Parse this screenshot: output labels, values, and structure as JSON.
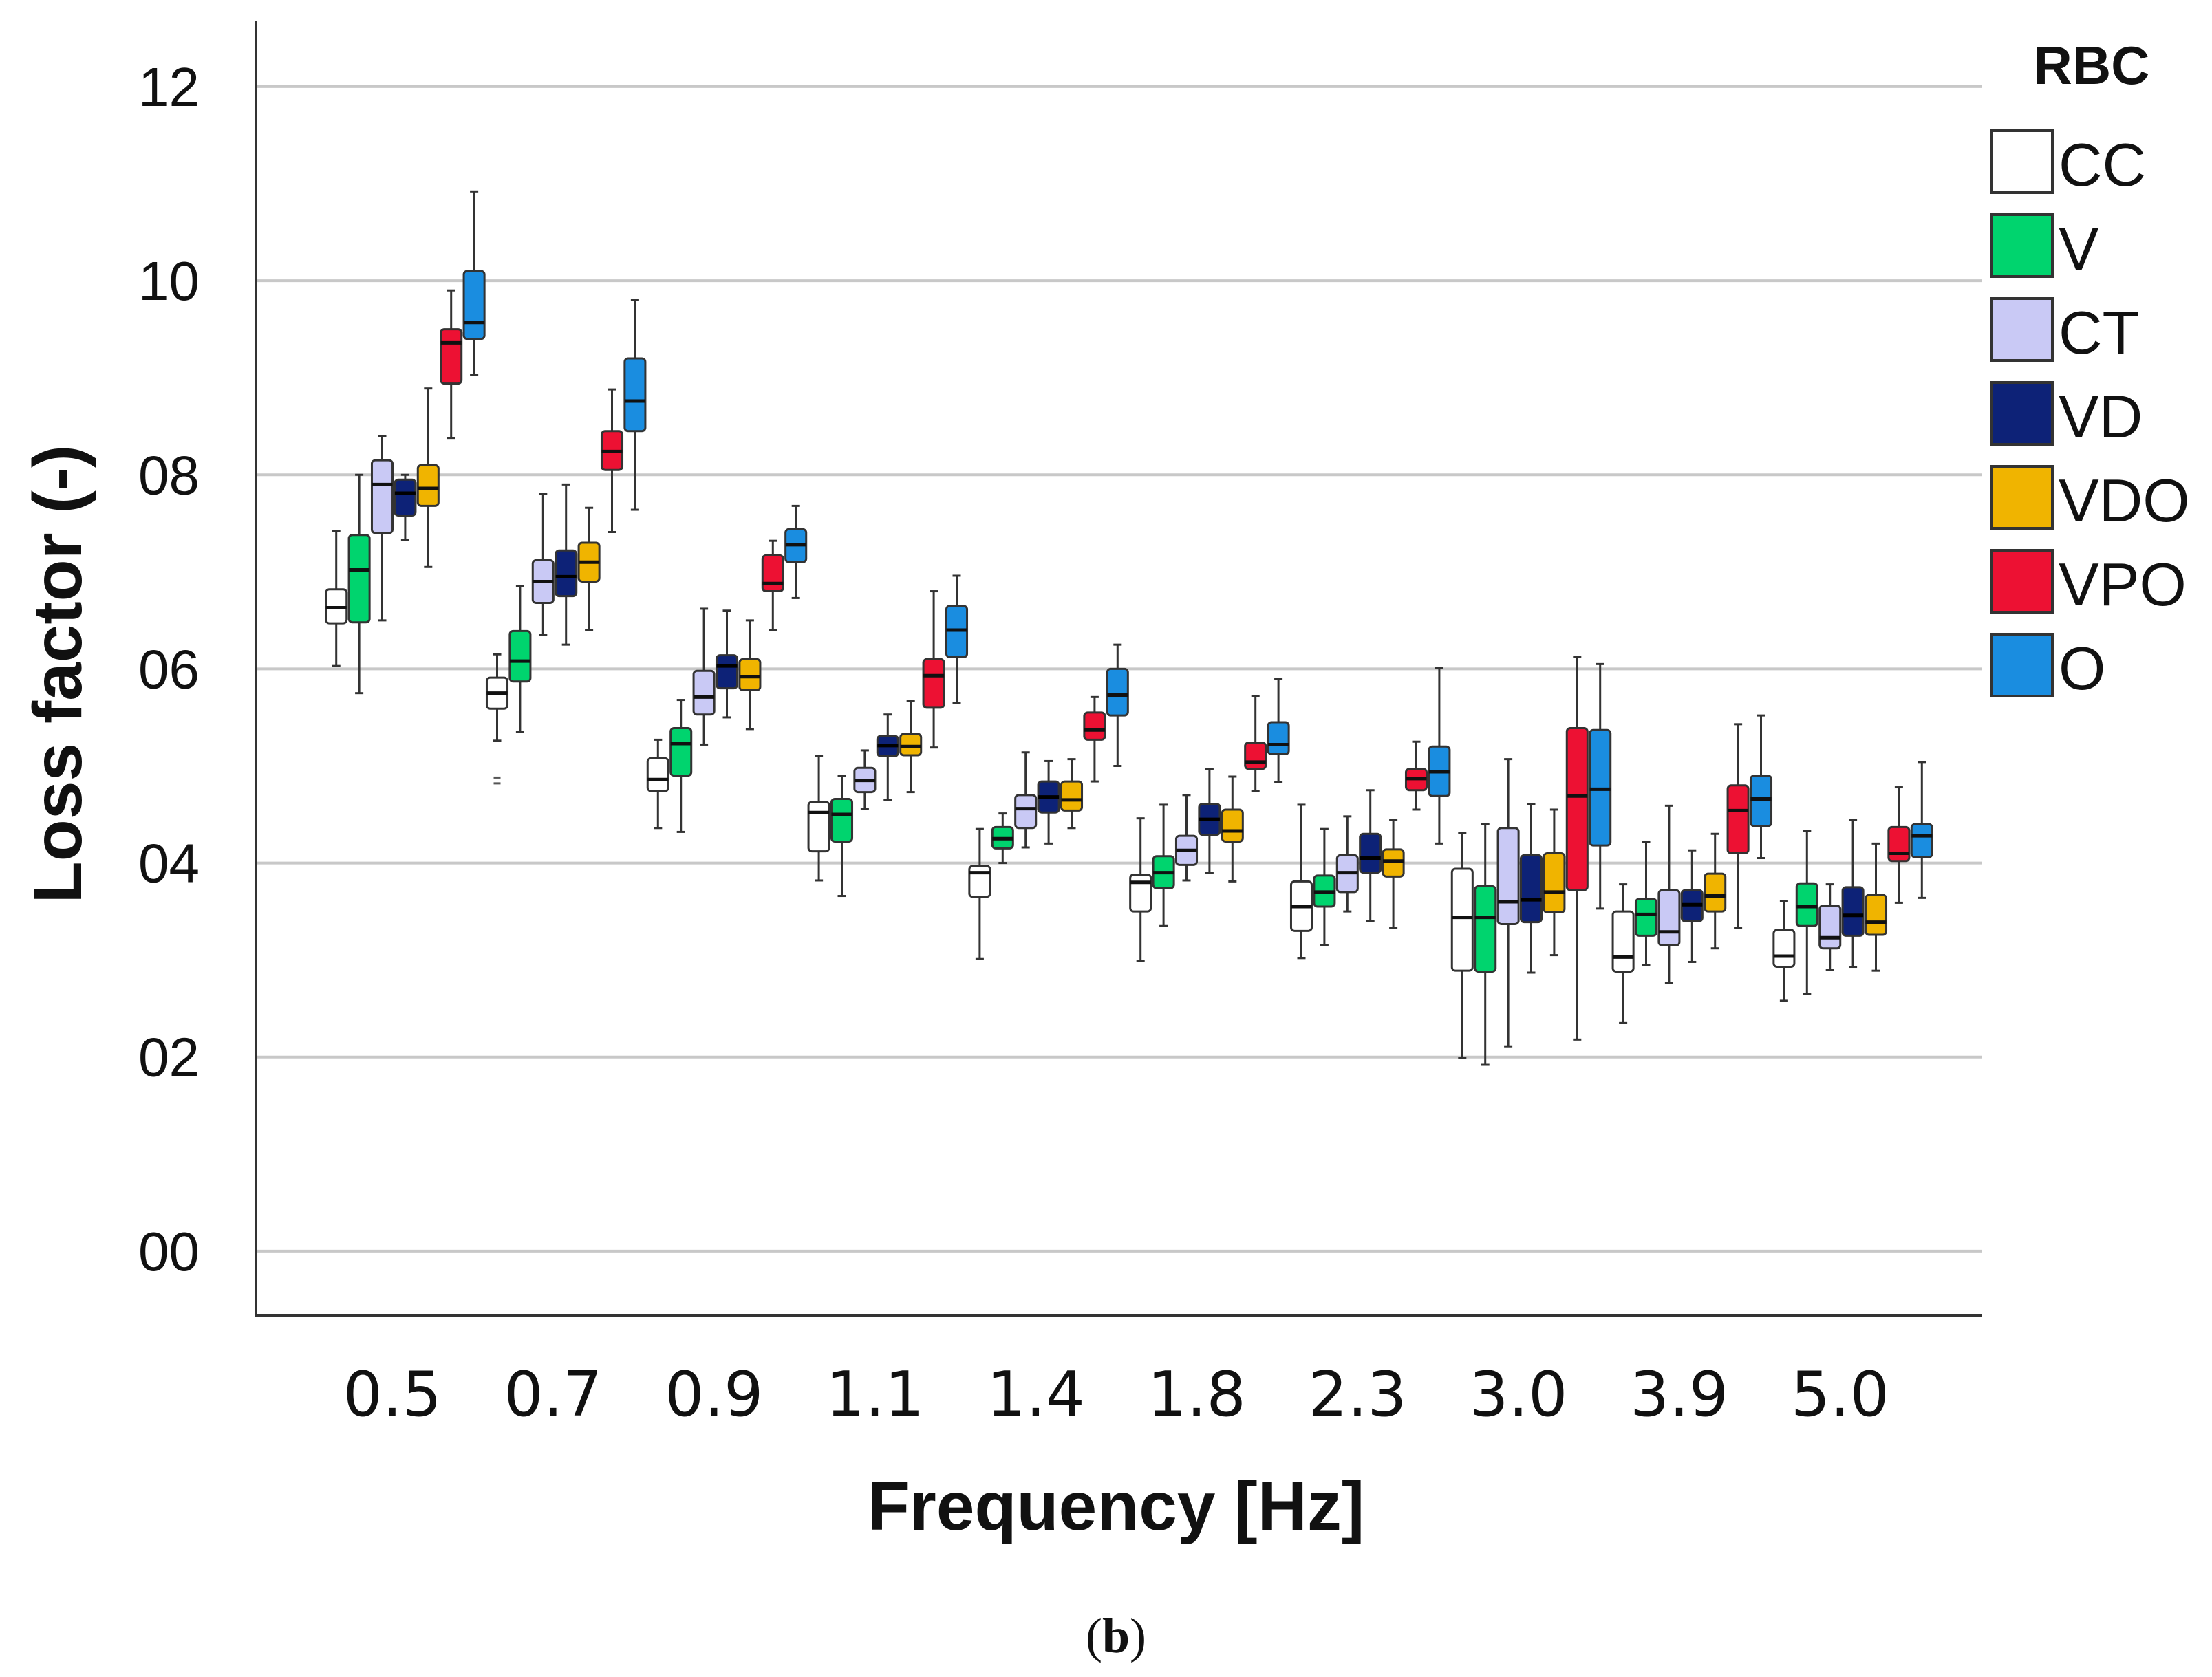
{
  "chart_data": {
    "type": "box",
    "ylabel": "Loss factor (-)",
    "xlabel": "Frequency [Hz]",
    "caption_open": "(",
    "caption_letter": "b",
    "caption_close": ")",
    "ylim": [
      -0.0066,
      0.1268
    ],
    "yticks": [
      {
        "value": 0.0,
        "label": "00"
      },
      {
        "value": 0.02,
        "label": "02"
      },
      {
        "value": 0.04,
        "label": "04"
      },
      {
        "value": 0.06,
        "label": "06"
      },
      {
        "value": 0.08,
        "label": "08"
      },
      {
        "value": 0.1,
        "label": "10"
      },
      {
        "value": 0.12,
        "label": "12"
      }
    ],
    "grid": true,
    "legend": {
      "title": "RBC",
      "position": "right"
    },
    "categories": [
      "0.5",
      "0.7",
      "0.9",
      "1.1",
      "1.4",
      "1.8",
      "2.3",
      "3.0",
      "3.9",
      "5.0"
    ],
    "series": [
      {
        "name": "CC",
        "color": "#ffffff",
        "boxes": [
          {
            "min": 0.0603,
            "q1": 0.0647,
            "median": 0.0663,
            "q3": 0.0682,
            "max": 0.0742
          },
          {
            "min": 0.0526,
            "q1": 0.0559,
            "median": 0.0575,
            "q3": 0.0591,
            "max": 0.0615,
            "outliers": [
              0.0488,
              0.0482
            ]
          },
          {
            "min": 0.0436,
            "q1": 0.0474,
            "median": 0.0486,
            "q3": 0.0508,
            "max": 0.0527
          },
          {
            "min": 0.0382,
            "q1": 0.0412,
            "median": 0.0452,
            "q3": 0.0463,
            "max": 0.051
          },
          {
            "min": 0.0301,
            "q1": 0.0365,
            "median": 0.039,
            "q3": 0.0397,
            "max": 0.0435
          },
          {
            "min": 0.0299,
            "q1": 0.035,
            "median": 0.038,
            "q3": 0.0388,
            "max": 0.0446
          },
          {
            "min": 0.0302,
            "q1": 0.033,
            "median": 0.0355,
            "q3": 0.0381,
            "max": 0.046
          },
          {
            "min": 0.0199,
            "q1": 0.0289,
            "median": 0.0344,
            "q3": 0.0394,
            "max": 0.0431
          },
          {
            "min": 0.0235,
            "q1": 0.0288,
            "median": 0.0303,
            "q3": 0.035,
            "max": 0.0378
          },
          {
            "min": 0.0258,
            "q1": 0.0293,
            "median": 0.0304,
            "q3": 0.0331,
            "max": 0.0361
          }
        ]
      },
      {
        "name": "V",
        "color": "#00d46e",
        "boxes": [
          {
            "min": 0.0575,
            "q1": 0.0648,
            "median": 0.0702,
            "q3": 0.0738,
            "max": 0.08
          },
          {
            "min": 0.0535,
            "q1": 0.0587,
            "median": 0.0608,
            "q3": 0.0639,
            "max": 0.0685
          },
          {
            "min": 0.0432,
            "q1": 0.049,
            "median": 0.0523,
            "q3": 0.0539,
            "max": 0.0568
          },
          {
            "min": 0.0366,
            "q1": 0.0422,
            "median": 0.045,
            "q3": 0.0466,
            "max": 0.049
          },
          {
            "min": 0.04,
            "q1": 0.0415,
            "median": 0.0425,
            "q3": 0.0437,
            "max": 0.0451
          },
          {
            "min": 0.0335,
            "q1": 0.0374,
            "median": 0.039,
            "q3": 0.0407,
            "max": 0.046
          },
          {
            "min": 0.0315,
            "q1": 0.0355,
            "median": 0.037,
            "q3": 0.0387,
            "max": 0.0435
          },
          {
            "min": 0.0192,
            "q1": 0.0288,
            "median": 0.0344,
            "q3": 0.0376,
            "max": 0.044
          },
          {
            "min": 0.0295,
            "q1": 0.0325,
            "median": 0.0347,
            "q3": 0.0363,
            "max": 0.0422
          },
          {
            "min": 0.0265,
            "q1": 0.0335,
            "median": 0.0355,
            "q3": 0.0379,
            "max": 0.0433
          }
        ]
      },
      {
        "name": "CT",
        "color": "#c9c9f5",
        "boxes": [
          {
            "min": 0.065,
            "q1": 0.074,
            "median": 0.079,
            "q3": 0.0815,
            "max": 0.084
          },
          {
            "min": 0.0635,
            "q1": 0.0668,
            "median": 0.069,
            "q3": 0.0712,
            "max": 0.078
          },
          {
            "min": 0.0522,
            "q1": 0.0553,
            "median": 0.0571,
            "q3": 0.0598,
            "max": 0.0662
          },
          {
            "min": 0.0456,
            "q1": 0.0473,
            "median": 0.0485,
            "q3": 0.0498,
            "max": 0.0516
          },
          {
            "min": 0.0416,
            "q1": 0.0436,
            "median": 0.0456,
            "q3": 0.047,
            "max": 0.0514
          },
          {
            "min": 0.0382,
            "q1": 0.0398,
            "median": 0.0413,
            "q3": 0.0428,
            "max": 0.047
          },
          {
            "min": 0.035,
            "q1": 0.037,
            "median": 0.039,
            "q3": 0.0408,
            "max": 0.0448
          },
          {
            "min": 0.0211,
            "q1": 0.0337,
            "median": 0.036,
            "q3": 0.0436,
            "max": 0.0507
          },
          {
            "min": 0.0276,
            "q1": 0.0315,
            "median": 0.0329,
            "q3": 0.0372,
            "max": 0.0459
          },
          {
            "min": 0.029,
            "q1": 0.0312,
            "median": 0.0323,
            "q3": 0.0356,
            "max": 0.0378
          }
        ]
      },
      {
        "name": "VD",
        "color": "#0d2277",
        "boxes": [
          {
            "min": 0.0733,
            "q1": 0.0758,
            "median": 0.0781,
            "q3": 0.0795,
            "max": 0.08
          },
          {
            "min": 0.0625,
            "q1": 0.0675,
            "median": 0.0695,
            "q3": 0.0722,
            "max": 0.079
          },
          {
            "min": 0.055,
            "q1": 0.058,
            "median": 0.0603,
            "q3": 0.0614,
            "max": 0.066
          },
          {
            "min": 0.0465,
            "q1": 0.051,
            "median": 0.0521,
            "q3": 0.0531,
            "max": 0.0553
          },
          {
            "min": 0.042,
            "q1": 0.0452,
            "median": 0.0468,
            "q3": 0.0484,
            "max": 0.0505
          },
          {
            "min": 0.039,
            "q1": 0.0429,
            "median": 0.0445,
            "q3": 0.0461,
            "max": 0.0497
          },
          {
            "min": 0.034,
            "q1": 0.039,
            "median": 0.0405,
            "q3": 0.043,
            "max": 0.0475
          },
          {
            "min": 0.0287,
            "q1": 0.0339,
            "median": 0.0362,
            "q3": 0.0408,
            "max": 0.0461
          },
          {
            "min": 0.0298,
            "q1": 0.034,
            "median": 0.0357,
            "q3": 0.0372,
            "max": 0.0413
          },
          {
            "min": 0.0293,
            "q1": 0.0325,
            "median": 0.0346,
            "q3": 0.0375,
            "max": 0.0444
          }
        ]
      },
      {
        "name": "VDO",
        "color": "#f0b400",
        "boxes": [
          {
            "min": 0.0705,
            "q1": 0.0768,
            "median": 0.0786,
            "q3": 0.081,
            "max": 0.0889
          },
          {
            "min": 0.064,
            "q1": 0.069,
            "median": 0.071,
            "q3": 0.073,
            "max": 0.0766
          },
          {
            "min": 0.0538,
            "q1": 0.0578,
            "median": 0.0592,
            "q3": 0.061,
            "max": 0.065
          },
          {
            "min": 0.0473,
            "q1": 0.0511,
            "median": 0.052,
            "q3": 0.0533,
            "max": 0.0567
          },
          {
            "min": 0.0436,
            "q1": 0.0454,
            "median": 0.0465,
            "q3": 0.0484,
            "max": 0.0507
          },
          {
            "min": 0.0381,
            "q1": 0.0422,
            "median": 0.0433,
            "q3": 0.0455,
            "max": 0.0489
          },
          {
            "min": 0.0333,
            "q1": 0.0386,
            "median": 0.0402,
            "q3": 0.0414,
            "max": 0.0444
          },
          {
            "min": 0.0305,
            "q1": 0.0349,
            "median": 0.037,
            "q3": 0.041,
            "max": 0.0455
          },
          {
            "min": 0.0312,
            "q1": 0.035,
            "median": 0.0366,
            "q3": 0.0389,
            "max": 0.043
          },
          {
            "min": 0.0289,
            "q1": 0.0326,
            "median": 0.0339,
            "q3": 0.0367,
            "max": 0.042
          }
        ]
      },
      {
        "name": "VPO",
        "color": "#ed1133",
        "boxes": [
          {
            "min": 0.0838,
            "q1": 0.0894,
            "median": 0.0936,
            "q3": 0.095,
            "max": 0.099
          },
          {
            "min": 0.0741,
            "q1": 0.0805,
            "median": 0.0824,
            "q3": 0.0845,
            "max": 0.0888
          },
          {
            "min": 0.064,
            "q1": 0.068,
            "median": 0.0688,
            "q3": 0.0717,
            "max": 0.0732
          },
          {
            "min": 0.0519,
            "q1": 0.056,
            "median": 0.0593,
            "q3": 0.061,
            "max": 0.068
          },
          {
            "min": 0.0484,
            "q1": 0.0527,
            "median": 0.0537,
            "q3": 0.0555,
            "max": 0.0571
          },
          {
            "min": 0.0474,
            "q1": 0.0497,
            "median": 0.0504,
            "q3": 0.0524,
            "max": 0.0572
          },
          {
            "min": 0.0455,
            "q1": 0.0475,
            "median": 0.0487,
            "q3": 0.0497,
            "max": 0.0525
          },
          {
            "min": 0.0218,
            "q1": 0.0372,
            "median": 0.0469,
            "q3": 0.0539,
            "max": 0.0612
          },
          {
            "min": 0.0333,
            "q1": 0.041,
            "median": 0.0454,
            "q3": 0.048,
            "max": 0.0543
          },
          {
            "min": 0.0359,
            "q1": 0.0402,
            "median": 0.041,
            "q3": 0.0437,
            "max": 0.0478
          }
        ]
      },
      {
        "name": "O",
        "color": "#1a8de0",
        "boxes": [
          {
            "min": 0.0903,
            "q1": 0.094,
            "median": 0.0957,
            "q3": 0.101,
            "max": 0.1092
          },
          {
            "min": 0.0764,
            "q1": 0.0845,
            "median": 0.0876,
            "q3": 0.092,
            "max": 0.098
          },
          {
            "min": 0.0673,
            "q1": 0.071,
            "median": 0.0728,
            "q3": 0.0744,
            "max": 0.0768
          },
          {
            "min": 0.0565,
            "q1": 0.0612,
            "median": 0.064,
            "q3": 0.0665,
            "max": 0.0696
          },
          {
            "min": 0.05,
            "q1": 0.0552,
            "median": 0.0573,
            "q3": 0.06,
            "max": 0.0625
          },
          {
            "min": 0.0483,
            "q1": 0.0512,
            "median": 0.0522,
            "q3": 0.0545,
            "max": 0.059
          },
          {
            "min": 0.042,
            "q1": 0.0469,
            "median": 0.0494,
            "q3": 0.052,
            "max": 0.0601
          },
          {
            "min": 0.0353,
            "q1": 0.0418,
            "median": 0.0476,
            "q3": 0.0537,
            "max": 0.0605
          },
          {
            "min": 0.0405,
            "q1": 0.0438,
            "median": 0.0466,
            "q3": 0.049,
            "max": 0.0552
          },
          {
            "min": 0.0364,
            "q1": 0.0406,
            "median": 0.0428,
            "q3": 0.044,
            "max": 0.0504
          }
        ]
      }
    ]
  }
}
